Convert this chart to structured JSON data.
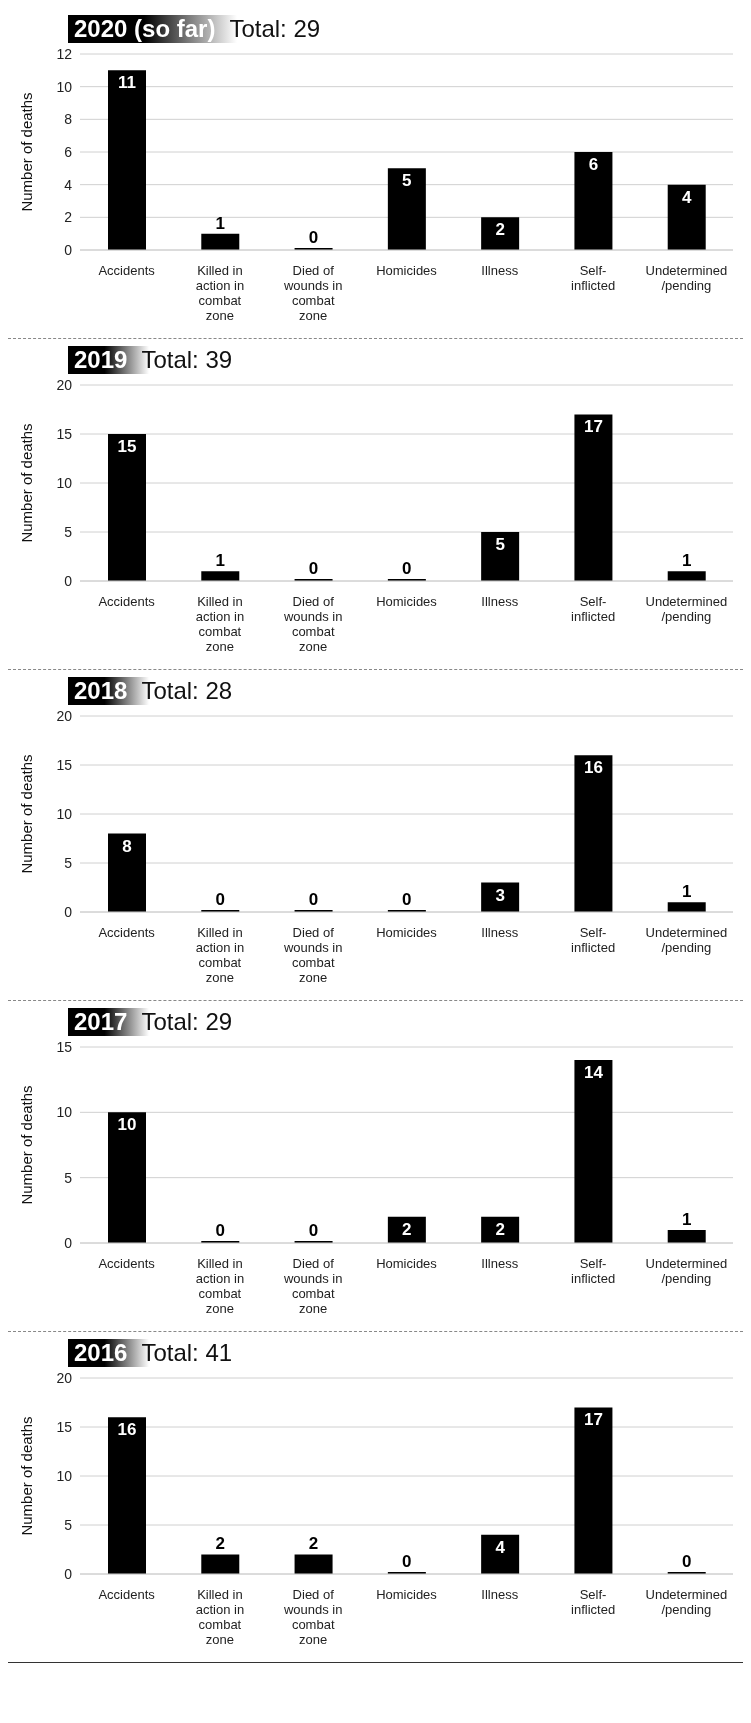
{
  "chart_data": [
    {
      "type": "bar",
      "title": "2020 (so far)",
      "subtitle": "Total: 29",
      "ylabel": "Number of deaths",
      "categories": [
        "Accidents",
        "Killed in action in combat zone",
        "Died of wounds in combat zone",
        "Homicides",
        "Illness",
        "Self-inflicted",
        "Undetermined /pending"
      ],
      "values": [
        11,
        1,
        0,
        5,
        2,
        6,
        4
      ],
      "color": "#000000",
      "ylim": [
        0,
        12
      ],
      "yticks": [
        0,
        2,
        4,
        6,
        8,
        10,
        12
      ],
      "grid": "y",
      "data_labels": true
    },
    {
      "type": "bar",
      "title": "2019",
      "subtitle": "Total: 39",
      "ylabel": "Number of deaths",
      "categories": [
        "Accidents",
        "Killed in action in combat zone",
        "Died of wounds in combat zone",
        "Homicides",
        "Illness",
        "Self-inflicted",
        "Undetermined /pending"
      ],
      "values": [
        15,
        1,
        0,
        0,
        5,
        17,
        1
      ],
      "color": "#000000",
      "ylim": [
        0,
        20
      ],
      "yticks": [
        0,
        5,
        10,
        15,
        20
      ],
      "grid": "y",
      "data_labels": true
    },
    {
      "type": "bar",
      "title": "2018",
      "subtitle": "Total: 28",
      "ylabel": "Number of deaths",
      "categories": [
        "Accidents",
        "Killed in action in combat zone",
        "Died of wounds in combat zone",
        "Homicides",
        "Illness",
        "Self-inflicted",
        "Undetermined /pending"
      ],
      "values": [
        8,
        0,
        0,
        0,
        3,
        16,
        1
      ],
      "color": "#000000",
      "ylim": [
        0,
        20
      ],
      "yticks": [
        0,
        5,
        10,
        15,
        20
      ],
      "grid": "y",
      "data_labels": true
    },
    {
      "type": "bar",
      "title": "2017",
      "subtitle": "Total: 29",
      "ylabel": "Number of deaths",
      "categories": [
        "Accidents",
        "Killed in action in combat zone",
        "Died of wounds in combat zone",
        "Homicides",
        "Illness",
        "Self-inflicted",
        "Undetermined /pending"
      ],
      "values": [
        10,
        0,
        0,
        2,
        2,
        14,
        1
      ],
      "color": "#000000",
      "ylim": [
        0,
        15
      ],
      "yticks": [
        0,
        5,
        10,
        15
      ],
      "grid": "y",
      "data_labels": true
    },
    {
      "type": "bar",
      "title": "2016",
      "subtitle": "Total: 41",
      "ylabel": "Number of deaths",
      "categories": [
        "Accidents",
        "Killed in action in combat zone",
        "Died of wounds in combat zone",
        "Homicides",
        "Illness",
        "Self-inflicted",
        "Undetermined /pending"
      ],
      "values": [
        16,
        2,
        2,
        0,
        4,
        17,
        0
      ],
      "color": "#000000",
      "ylim": [
        0,
        20
      ],
      "yticks": [
        0,
        5,
        10,
        15,
        20
      ],
      "grid": "y",
      "data_labels": true
    }
  ]
}
